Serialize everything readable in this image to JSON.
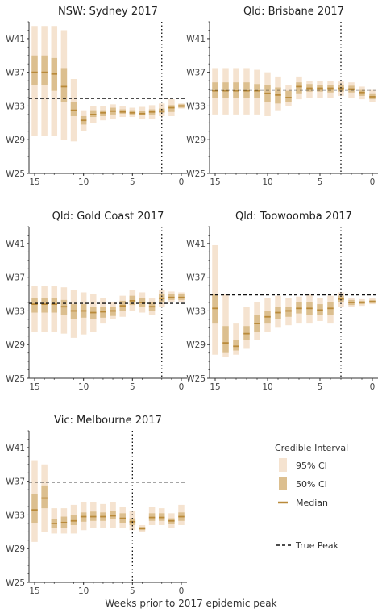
{
  "x_axis_title": "Weeks prior to 2017 epidemic peak",
  "legend": {
    "title": "Credible Interval",
    "ci95_label": "95% CI",
    "ci50_label": "50% CI",
    "median_label": "Median",
    "true_peak_label": "True Peak"
  },
  "colors": {
    "ci95": "#f5e3d0",
    "ci50": "#dcbf8f",
    "median": "#b98a3a",
    "axis": "#333333"
  },
  "chart_data": [
    {
      "type": "interval",
      "title": "NSW: Sydney 2017",
      "xlim": [
        15,
        0
      ],
      "ylim": [
        25,
        43
      ],
      "x_ticks": [
        15,
        10,
        5,
        0
      ],
      "y_ticks": [
        {
          "v": 41,
          "label": "W41"
        },
        {
          "v": 37,
          "label": "W37"
        },
        {
          "v": 33,
          "label": "W33"
        },
        {
          "v": 29,
          "label": "W29"
        },
        {
          "v": 25,
          "label": "W25"
        }
      ],
      "true_peak_week": 33.9,
      "peak_offset_x": 2,
      "points": [
        {
          "x": 15,
          "ci95": [
            29.5,
            42.5
          ],
          "ci50": [
            35.5,
            39.0
          ],
          "median": 37.0
        },
        {
          "x": 14,
          "ci95": [
            29.5,
            42.5
          ],
          "ci50": [
            35.5,
            39.0
          ],
          "median": 37.0
        },
        {
          "x": 13,
          "ci95": [
            29.5,
            42.5
          ],
          "ci50": [
            34.8,
            38.7
          ],
          "median": 36.8
        },
        {
          "x": 12,
          "ci95": [
            29.0,
            42.0
          ],
          "ci50": [
            33.5,
            37.5
          ],
          "median": 35.3
        },
        {
          "x": 11,
          "ci95": [
            28.8,
            36.2
          ],
          "ci50": [
            31.8,
            33.5
          ],
          "median": 32.5
        },
        {
          "x": 10,
          "ci95": [
            30.0,
            32.5
          ],
          "ci50": [
            30.8,
            31.8
          ],
          "median": 31.3
        },
        {
          "x": 9,
          "ci95": [
            31.0,
            33.0
          ],
          "ci50": [
            31.7,
            32.5
          ],
          "median": 32.0
        },
        {
          "x": 8,
          "ci95": [
            31.3,
            33.0
          ],
          "ci50": [
            31.8,
            32.5
          ],
          "median": 32.2
        },
        {
          "x": 7,
          "ci95": [
            31.5,
            33.2
          ],
          "ci50": [
            32.0,
            32.8
          ],
          "median": 32.4
        },
        {
          "x": 6,
          "ci95": [
            31.7,
            33.0
          ],
          "ci50": [
            32.1,
            32.6
          ],
          "median": 32.3
        },
        {
          "x": 5,
          "ci95": [
            31.7,
            32.8
          ],
          "ci50": [
            32.0,
            32.5
          ],
          "median": 32.2
        },
        {
          "x": 4,
          "ci95": [
            31.5,
            32.9
          ],
          "ci50": [
            31.9,
            32.4
          ],
          "median": 32.1
        },
        {
          "x": 3,
          "ci95": [
            31.5,
            33.1
          ],
          "ci50": [
            32.0,
            32.6
          ],
          "median": 32.3
        },
        {
          "x": 2,
          "ci95": [
            31.8,
            33.3
          ],
          "ci50": [
            32.2,
            32.7
          ],
          "median": 32.4
        },
        {
          "x": 1,
          "ci95": [
            31.8,
            33.8
          ],
          "ci50": [
            32.3,
            33.1
          ],
          "median": 32.8
        },
        {
          "x": 0,
          "ci95": [
            32.7,
            33.3
          ],
          "ci50": [
            32.8,
            33.2
          ],
          "median": 33.0
        }
      ]
    },
    {
      "type": "interval",
      "title": "Qld: Brisbane 2017",
      "xlim": [
        15,
        0
      ],
      "ylim": [
        25,
        43
      ],
      "x_ticks": [
        15,
        10,
        5,
        0
      ],
      "y_ticks": [
        {
          "v": 41,
          "label": "W41"
        },
        {
          "v": 37,
          "label": "W37"
        },
        {
          "v": 33,
          "label": "W33"
        },
        {
          "v": 29,
          "label": "W29"
        },
        {
          "v": 25,
          "label": "W25"
        }
      ],
      "true_peak_week": 34.9,
      "peak_offset_x": 3,
      "points": [
        {
          "x": 15,
          "ci95": [
            32.0,
            37.5
          ],
          "ci50": [
            34.0,
            35.8
          ],
          "median": 34.8
        },
        {
          "x": 14,
          "ci95": [
            32.0,
            37.5
          ],
          "ci50": [
            34.0,
            35.8
          ],
          "median": 34.8
        },
        {
          "x": 13,
          "ci95": [
            32.0,
            37.5
          ],
          "ci50": [
            34.0,
            35.8
          ],
          "median": 34.8
        },
        {
          "x": 12,
          "ci95": [
            32.0,
            37.5
          ],
          "ci50": [
            34.0,
            35.8
          ],
          "median": 34.8
        },
        {
          "x": 11,
          "ci95": [
            32.0,
            37.3
          ],
          "ci50": [
            34.0,
            35.6
          ],
          "median": 34.8
        },
        {
          "x": 10,
          "ci95": [
            31.8,
            37.0
          ],
          "ci50": [
            33.5,
            35.5
          ],
          "median": 34.5
        },
        {
          "x": 9,
          "ci95": [
            32.5,
            36.5
          ],
          "ci50": [
            33.3,
            35.2
          ],
          "median": 34.3
        },
        {
          "x": 8,
          "ci95": [
            33.0,
            35.5
          ],
          "ci50": [
            33.5,
            34.8
          ],
          "median": 34.0
        },
        {
          "x": 7,
          "ci95": [
            33.8,
            36.5
          ],
          "ci50": [
            34.5,
            35.8
          ],
          "median": 35.3
        },
        {
          "x": 6,
          "ci95": [
            34.0,
            36.0
          ],
          "ci50": [
            34.7,
            35.6
          ],
          "median": 35.1
        },
        {
          "x": 5,
          "ci95": [
            34.0,
            36.0
          ],
          "ci50": [
            34.7,
            35.5
          ],
          "median": 35.1
        },
        {
          "x": 4,
          "ci95": [
            34.0,
            36.0
          ],
          "ci50": [
            34.6,
            35.5
          ],
          "median": 35.1
        },
        {
          "x": 3,
          "ci95": [
            34.2,
            35.9
          ],
          "ci50": [
            34.7,
            35.5
          ],
          "median": 35.1
        },
        {
          "x": 2,
          "ci95": [
            34.0,
            35.8
          ],
          "ci50": [
            34.6,
            35.4
          ],
          "median": 35.0
        },
        {
          "x": 1,
          "ci95": [
            33.8,
            35.3
          ],
          "ci50": [
            34.2,
            35.0
          ],
          "median": 34.6
        },
        {
          "x": 0,
          "ci95": [
            33.5,
            35.0
          ],
          "ci50": [
            33.8,
            34.5
          ],
          "median": 34.1
        }
      ]
    },
    {
      "type": "interval",
      "title": "Qld: Gold Coast 2017",
      "xlim": [
        15,
        0
      ],
      "ylim": [
        25,
        43
      ],
      "x_ticks": [
        15,
        10,
        5,
        0
      ],
      "y_ticks": [
        {
          "v": 41,
          "label": "W41"
        },
        {
          "v": 37,
          "label": "W37"
        },
        {
          "v": 33,
          "label": "W33"
        },
        {
          "v": 29,
          "label": "W29"
        },
        {
          "v": 25,
          "label": "W25"
        }
      ],
      "true_peak_week": 33.9,
      "peak_offset_x": 2,
      "points": [
        {
          "x": 15,
          "ci95": [
            30.5,
            36.0
          ],
          "ci50": [
            32.8,
            34.5
          ],
          "median": 33.8
        },
        {
          "x": 14,
          "ci95": [
            30.5,
            36.0
          ],
          "ci50": [
            32.8,
            34.5
          ],
          "median": 33.8
        },
        {
          "x": 13,
          "ci95": [
            30.5,
            36.0
          ],
          "ci50": [
            32.8,
            34.5
          ],
          "median": 33.8
        },
        {
          "x": 12,
          "ci95": [
            30.3,
            35.8
          ],
          "ci50": [
            32.5,
            34.3
          ],
          "median": 33.5
        },
        {
          "x": 11,
          "ci95": [
            29.8,
            35.5
          ],
          "ci50": [
            32.0,
            33.8
          ],
          "median": 33.0
        },
        {
          "x": 10,
          "ci95": [
            30.2,
            35.2
          ],
          "ci50": [
            32.2,
            33.8
          ],
          "median": 33.0
        },
        {
          "x": 9,
          "ci95": [
            30.5,
            35.0
          ],
          "ci50": [
            32.0,
            33.5
          ],
          "median": 32.8
        },
        {
          "x": 8,
          "ci95": [
            31.5,
            34.5
          ],
          "ci50": [
            32.2,
            33.5
          ],
          "median": 32.9
        },
        {
          "x": 7,
          "ci95": [
            32.0,
            34.0
          ],
          "ci50": [
            32.4,
            33.5
          ],
          "median": 33.0
        },
        {
          "x": 6,
          "ci95": [
            32.3,
            34.8
          ],
          "ci50": [
            33.0,
            34.2
          ],
          "median": 33.6
        },
        {
          "x": 5,
          "ci95": [
            33.0,
            35.5
          ],
          "ci50": [
            33.7,
            34.8
          ],
          "median": 34.2
        },
        {
          "x": 4,
          "ci95": [
            32.8,
            35.2
          ],
          "ci50": [
            33.5,
            34.5
          ],
          "median": 34.0
        },
        {
          "x": 3,
          "ci95": [
            32.5,
            34.5
          ],
          "ci50": [
            33.0,
            34.0
          ],
          "median": 33.5
        },
        {
          "x": 2,
          "ci95": [
            33.5,
            35.5
          ],
          "ci50": [
            34.0,
            35.0
          ],
          "median": 34.5
        },
        {
          "x": 1,
          "ci95": [
            34.0,
            35.3
          ],
          "ci50": [
            34.3,
            35.0
          ],
          "median": 34.6
        },
        {
          "x": 0,
          "ci95": [
            34.0,
            35.2
          ],
          "ci50": [
            34.3,
            35.0
          ],
          "median": 34.6
        }
      ]
    },
    {
      "type": "interval",
      "title": "Qld: Toowoomba 2017",
      "xlim": [
        15,
        0
      ],
      "ylim": [
        25,
        43
      ],
      "x_ticks": [
        15,
        10,
        5,
        0
      ],
      "y_ticks": [
        {
          "v": 41,
          "label": "W41"
        },
        {
          "v": 37,
          "label": "W37"
        },
        {
          "v": 33,
          "label": "W33"
        },
        {
          "v": 29,
          "label": "W29"
        },
        {
          "v": 25,
          "label": "W25"
        }
      ],
      "true_peak_week": 34.9,
      "peak_offset_x": 3,
      "points": [
        {
          "x": 15,
          "ci95": [
            27.8,
            40.8
          ],
          "ci50": [
            31.5,
            35.0
          ],
          "median": 33.3
        },
        {
          "x": 14,
          "ci95": [
            27.5,
            35.0
          ],
          "ci50": [
            28.0,
            31.2
          ],
          "median": 29.2
        },
        {
          "x": 13,
          "ci95": [
            27.8,
            31.5
          ],
          "ci50": [
            28.3,
            29.5
          ],
          "median": 28.8
        },
        {
          "x": 12,
          "ci95": [
            28.5,
            33.5
          ],
          "ci50": [
            29.5,
            31.2
          ],
          "median": 30.3
        },
        {
          "x": 11,
          "ci95": [
            29.5,
            34.0
          ],
          "ci50": [
            30.5,
            32.5
          ],
          "median": 31.5
        },
        {
          "x": 10,
          "ci95": [
            30.5,
            34.5
          ],
          "ci50": [
            31.5,
            33.0
          ],
          "median": 32.3
        },
        {
          "x": 9,
          "ci95": [
            31.0,
            34.8
          ],
          "ci50": [
            32.0,
            33.5
          ],
          "median": 32.8
        },
        {
          "x": 8,
          "ci95": [
            31.3,
            34.5
          ],
          "ci50": [
            32.3,
            33.5
          ],
          "median": 33.0
        },
        {
          "x": 7,
          "ci95": [
            31.5,
            34.7
          ],
          "ci50": [
            32.7,
            34.0
          ],
          "median": 33.3
        },
        {
          "x": 6,
          "ci95": [
            31.5,
            35.0
          ],
          "ci50": [
            32.5,
            34.0
          ],
          "median": 33.3
        },
        {
          "x": 5,
          "ci95": [
            31.8,
            34.5
          ],
          "ci50": [
            32.5,
            33.8
          ],
          "median": 33.1
        },
        {
          "x": 4,
          "ci95": [
            31.5,
            34.8
          ],
          "ci50": [
            32.5,
            34.0
          ],
          "median": 33.3
        },
        {
          "x": 3,
          "ci95": [
            33.5,
            35.2
          ],
          "ci50": [
            34.0,
            34.8
          ],
          "median": 34.4
        },
        {
          "x": 2,
          "ci95": [
            33.5,
            34.5
          ],
          "ci50": [
            33.7,
            34.3
          ],
          "median": 34.0
        },
        {
          "x": 1,
          "ci95": [
            33.6,
            34.4
          ],
          "ci50": [
            33.8,
            34.2
          ],
          "median": 34.0
        },
        {
          "x": 0,
          "ci95": [
            33.8,
            34.5
          ],
          "ci50": [
            33.9,
            34.3
          ],
          "median": 34.1
        }
      ]
    },
    {
      "type": "interval",
      "title": "Vic: Melbourne 2017",
      "xlim": [
        15,
        0
      ],
      "ylim": [
        25,
        43
      ],
      "x_ticks": [
        15,
        10,
        5,
        0
      ],
      "y_ticks": [
        {
          "v": 41,
          "label": "W41"
        },
        {
          "v": 37,
          "label": "W37"
        },
        {
          "v": 33,
          "label": "W33"
        },
        {
          "v": 29,
          "label": "W29"
        },
        {
          "v": 25,
          "label": "W25"
        }
      ],
      "true_peak_week": 36.9,
      "peak_offset_x": 5,
      "points": [
        {
          "x": 15,
          "ci95": [
            29.8,
            39.5
          ],
          "ci50": [
            32.0,
            35.5
          ],
          "median": 33.6
        },
        {
          "x": 14,
          "ci95": [
            31.0,
            39.0
          ],
          "ci50": [
            33.8,
            36.5
          ],
          "median": 35.0
        },
        {
          "x": 13,
          "ci95": [
            30.8,
            33.8
          ],
          "ci50": [
            31.5,
            32.5
          ],
          "median": 32.0
        },
        {
          "x": 12,
          "ci95": [
            30.8,
            33.8
          ],
          "ci50": [
            31.5,
            32.8
          ],
          "median": 32.1
        },
        {
          "x": 11,
          "ci95": [
            30.8,
            34.2
          ],
          "ci50": [
            31.8,
            33.0
          ],
          "median": 32.3
        },
        {
          "x": 10,
          "ci95": [
            31.2,
            34.5
          ],
          "ci50": [
            32.2,
            33.3
          ],
          "median": 32.8
        },
        {
          "x": 9,
          "ci95": [
            31.5,
            34.5
          ],
          "ci50": [
            32.3,
            33.4
          ],
          "median": 32.8
        },
        {
          "x": 8,
          "ci95": [
            31.5,
            34.3
          ],
          "ci50": [
            32.3,
            33.3
          ],
          "median": 32.8
        },
        {
          "x": 7,
          "ci95": [
            31.5,
            34.5
          ],
          "ci50": [
            32.5,
            33.5
          ],
          "median": 32.9
        },
        {
          "x": 6,
          "ci95": [
            31.5,
            34.0
          ],
          "ci50": [
            32.0,
            33.2
          ],
          "median": 32.6
        },
        {
          "x": 5,
          "ci95": [
            31.2,
            33.5
          ],
          "ci50": [
            31.8,
            32.6
          ],
          "median": 32.2
        },
        {
          "x": 4,
          "ci95": [
            31.0,
            31.8
          ],
          "ci50": [
            31.2,
            31.6
          ],
          "median": 31.4
        },
        {
          "x": 3,
          "ci95": [
            31.8,
            34.0
          ],
          "ci50": [
            32.3,
            33.2
          ],
          "median": 32.7
        },
        {
          "x": 2,
          "ci95": [
            31.8,
            33.8
          ],
          "ci50": [
            32.3,
            33.2
          ],
          "median": 32.7
        },
        {
          "x": 1,
          "ci95": [
            31.5,
            33.2
          ],
          "ci50": [
            31.9,
            32.6
          ],
          "median": 32.3
        },
        {
          "x": 0,
          "ci95": [
            31.8,
            34.2
          ],
          "ci50": [
            32.3,
            33.3
          ],
          "median": 32.8
        }
      ]
    }
  ]
}
